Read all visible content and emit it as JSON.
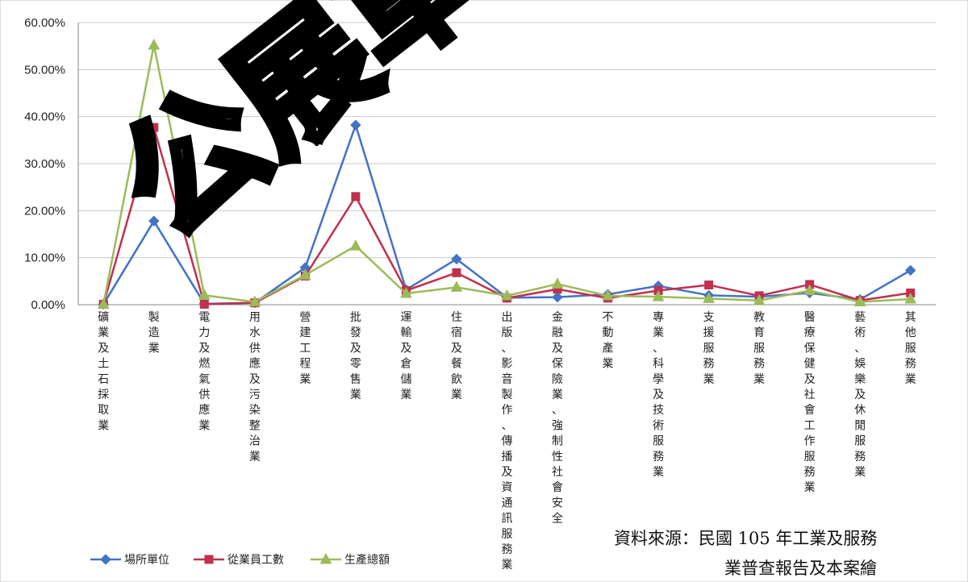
{
  "chart_data": {
    "type": "line",
    "title": "",
    "xlabel": "",
    "ylabel": "",
    "ylim": [
      0,
      0.6
    ],
    "ytick_labels": [
      "0.00%",
      "10.00%",
      "20.00%",
      "30.00%",
      "40.00%",
      "50.00%",
      "60.00%"
    ],
    "grid": true,
    "legend_position": "bottom-left",
    "categories": [
      "礦業及土石採取業",
      "製造業",
      "電力及燃氣供應業",
      "用水供應及污染整治業",
      "營建工程業",
      "批發及零售業",
      "運輸及倉儲業",
      "住宿及餐飲業",
      "出版、影音製作、傳播及資通訊服務業",
      "金融及保險業、強制性社會安全",
      "不動產業",
      "專業、科學及技術服務業",
      "支援服務業",
      "教育服務業",
      "醫療保健及社會工作服務業",
      "藝術、娛樂及休閒服務業",
      "其他服務業"
    ],
    "series": [
      {
        "name": "場所單位",
        "color": "#4472c4",
        "marker": "diamond",
        "values": [
          0.001,
          0.178,
          0.002,
          0.004,
          0.079,
          0.382,
          0.032,
          0.097,
          0.015,
          0.016,
          0.022,
          0.04,
          0.02,
          0.017,
          0.025,
          0.011,
          0.073
        ]
      },
      {
        "name": "從業員工數",
        "color": "#c0304f",
        "marker": "square",
        "values": [
          0.001,
          0.377,
          0.001,
          0.004,
          0.061,
          0.23,
          0.03,
          0.068,
          0.014,
          0.033,
          0.014,
          0.03,
          0.042,
          0.019,
          0.043,
          0.009,
          0.025
        ]
      },
      {
        "name": "生產總額",
        "color": "#9bbb59",
        "marker": "triangle",
        "values": [
          0.001,
          0.552,
          0.02,
          0.006,
          0.063,
          0.125,
          0.024,
          0.037,
          0.019,
          0.044,
          0.019,
          0.017,
          0.013,
          0.009,
          0.03,
          0.006,
          0.012
        ]
      }
    ]
  },
  "source": {
    "line1": "資料來源：民國 105 年工業及服務",
    "line2": "業普查報告及本案繪"
  },
  "watermark": {
    "text": "公展草案",
    "color": "#000000"
  }
}
